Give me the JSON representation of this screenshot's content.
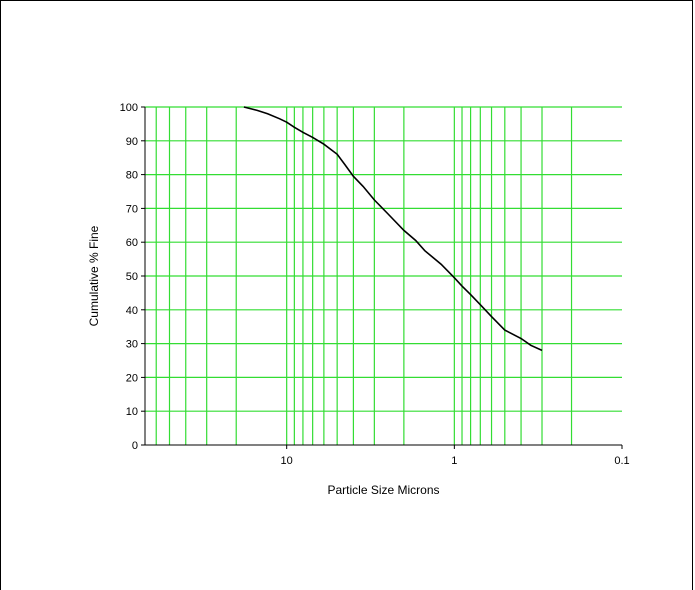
{
  "chart_data": {
    "type": "line",
    "title": "",
    "xlabel": "Particle Size Microns",
    "ylabel": "Cumulative % Fine",
    "xscale": "log",
    "xaxis_direction": "reversed",
    "xlim": [
      0.1,
      70
    ],
    "ylim": [
      0,
      100
    ],
    "xticks": [
      10,
      1,
      0.1
    ],
    "xtick_labels": [
      "10",
      "1",
      "0.1"
    ],
    "yticks": [
      0,
      10,
      20,
      30,
      40,
      50,
      60,
      70,
      80,
      90,
      100
    ],
    "ytick_labels": [
      "0",
      "10",
      "20",
      "30",
      "40",
      "50",
      "60",
      "70",
      "80",
      "90",
      "100"
    ],
    "grid": true,
    "legend": "none",
    "colors": {
      "grid": "#33dd33",
      "line": "#000000",
      "axis": "#000000"
    },
    "series": [
      {
        "x": [
          18,
          15,
          13,
          11,
          10,
          9,
          8,
          7,
          6,
          5,
          4.5,
          4,
          3.5,
          3,
          2.5,
          2,
          1.7,
          1.5,
          1.2,
          1,
          0.9,
          0.8,
          0.7,
          0.6,
          0.5,
          0.4,
          0.35,
          0.3
        ],
        "y": [
          100,
          99,
          98,
          96.5,
          95.5,
          94,
          92.5,
          91,
          89,
          86,
          83,
          79.5,
          76.5,
          72.5,
          68.5,
          63.5,
          60.5,
          57.5,
          53.5,
          49.5,
          47,
          44.5,
          41.5,
          38,
          34,
          31.5,
          29.5,
          28
        ]
      }
    ]
  }
}
